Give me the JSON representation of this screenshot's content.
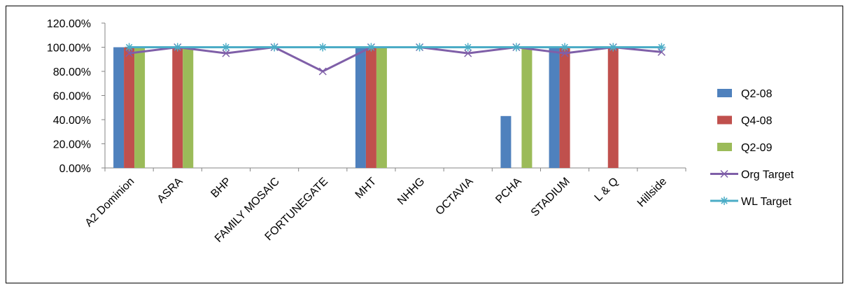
{
  "chart_data": {
    "type": "bar",
    "categories": [
      "A2 Dominion",
      "ASRA",
      "BHP",
      "FAMILY MOSAIC",
      "FORTUNEGATE",
      "MHT",
      "NHHG",
      "OCTAVIA",
      "PCHA",
      "STADIUM",
      "L & Q",
      "Hillside"
    ],
    "series": [
      {
        "name": "Q2-08",
        "kind": "bar",
        "color": "#4F81BD",
        "values": [
          1.0,
          null,
          null,
          null,
          null,
          1.0,
          null,
          null,
          0.43,
          1.0,
          null,
          null
        ]
      },
      {
        "name": "Q4-08",
        "kind": "bar",
        "color": "#C0504D",
        "values": [
          1.0,
          1.0,
          null,
          null,
          null,
          1.0,
          null,
          null,
          null,
          1.0,
          1.0,
          null
        ]
      },
      {
        "name": "Q2-09",
        "kind": "bar",
        "color": "#9BBB59",
        "values": [
          1.0,
          1.0,
          null,
          null,
          null,
          1.0,
          null,
          null,
          1.0,
          null,
          null,
          null
        ]
      },
      {
        "name": "Org Target",
        "kind": "line",
        "color": "#7F5FA8",
        "values": [
          0.95,
          1.0,
          0.95,
          1.0,
          0.8,
          1.0,
          1.0,
          0.95,
          1.0,
          0.95,
          1.0,
          0.96
        ]
      },
      {
        "name": "WL Target",
        "kind": "line",
        "color": "#4BACC6",
        "values": [
          1.0,
          1.0,
          1.0,
          1.0,
          1.0,
          1.0,
          1.0,
          1.0,
          1.0,
          1.0,
          1.0,
          1.0
        ]
      }
    ],
    "yticks": [
      "0.00%",
      "20.00%",
      "40.00%",
      "60.00%",
      "80.00%",
      "100.00%",
      "120.00%"
    ],
    "ylim": [
      0,
      1.2
    ],
    "grid": false,
    "legend_position": "right"
  }
}
